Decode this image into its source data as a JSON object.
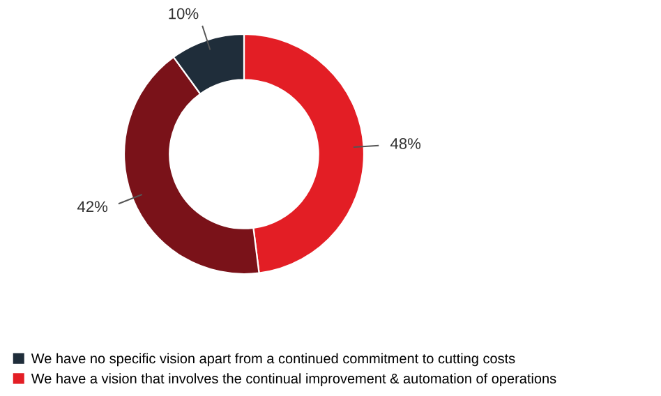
{
  "chart_data": {
    "type": "donut",
    "categories": [
      "We have a vision that involves the continual improvement & automation of operations",
      null,
      "We have no specific vision apart from a continued commitment to cutting costs"
    ],
    "values": [
      48,
      42,
      10
    ],
    "colors": [
      "#e31e25",
      "#7a1219",
      "#1f2d3a"
    ],
    "value_labels": [
      "48%",
      "42%",
      "10%"
    ],
    "legend": "bottom"
  }
}
